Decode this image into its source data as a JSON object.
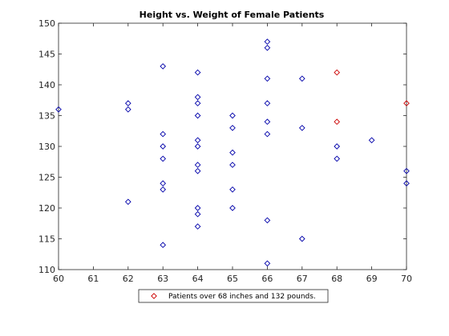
{
  "chart_data": {
    "type": "scatter",
    "title": "Height vs. Weight of Female Patients",
    "xlabel": "",
    "ylabel": "",
    "xlim": [
      60,
      70
    ],
    "ylim": [
      110,
      150
    ],
    "xticks": [
      60,
      61,
      62,
      63,
      64,
      65,
      66,
      67,
      68,
      69,
      70
    ],
    "yticks": [
      110,
      115,
      120,
      125,
      130,
      135,
      140,
      145,
      150
    ],
    "grid": false,
    "legend_position": "bottom",
    "marker": "diamond",
    "colors": {
      "default": "#0000aa",
      "highlight": "#cc0000"
    },
    "series": [
      {
        "name": "",
        "color": "#0000aa",
        "points": [
          [
            60,
            136
          ],
          [
            62,
            137
          ],
          [
            62,
            136
          ],
          [
            62,
            121
          ],
          [
            63,
            143
          ],
          [
            63,
            132
          ],
          [
            63,
            130
          ],
          [
            63,
            128
          ],
          [
            63,
            124
          ],
          [
            63,
            123
          ],
          [
            63,
            114
          ],
          [
            64,
            142
          ],
          [
            64,
            138
          ],
          [
            64,
            137
          ],
          [
            64,
            135
          ],
          [
            64,
            131
          ],
          [
            64,
            130
          ],
          [
            64,
            127
          ],
          [
            64,
            126
          ],
          [
            64,
            120
          ],
          [
            64,
            119
          ],
          [
            64,
            117
          ],
          [
            65,
            135
          ],
          [
            65,
            133
          ],
          [
            65,
            129
          ],
          [
            65,
            127
          ],
          [
            65,
            123
          ],
          [
            65,
            120
          ],
          [
            66,
            147
          ],
          [
            66,
            146
          ],
          [
            66,
            141
          ],
          [
            66,
            137
          ],
          [
            66,
            134
          ],
          [
            66,
            132
          ],
          [
            66,
            118
          ],
          [
            66,
            111
          ],
          [
            67,
            141
          ],
          [
            67,
            133
          ],
          [
            67,
            115
          ],
          [
            68,
            130
          ],
          [
            68,
            128
          ],
          [
            69,
            131
          ],
          [
            70,
            126
          ],
          [
            70,
            124
          ]
        ]
      },
      {
        "name": "Patients over 68 inches and 132 pounds.",
        "color": "#cc0000",
        "points": [
          [
            68,
            142
          ],
          [
            68,
            134
          ],
          [
            70,
            137
          ]
        ]
      }
    ]
  }
}
